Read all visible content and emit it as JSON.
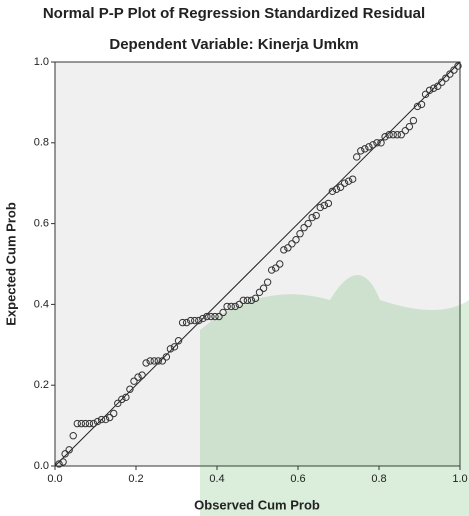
{
  "chart_data": {
    "type": "scatter",
    "title": "Normal P-P Plot of Regression Standardized Residual",
    "subtitle": "Dependent Variable: Kinerja Umkm",
    "x_label": "Observed Cum Prob",
    "y_label": "Expected Cum Prob",
    "xlim": [
      0,
      1
    ],
    "ylim": [
      0,
      1
    ],
    "xticks": [
      {
        "value": 0,
        "label": "0.0"
      },
      0.2,
      0.4,
      0.6,
      0.8,
      {
        "value": 1,
        "label": "1.0"
      }
    ],
    "yticks": [
      {
        "value": 0,
        "label": "0.0"
      },
      0.2,
      0.4,
      0.6,
      0.8,
      {
        "value": 1,
        "label": "1.0"
      }
    ],
    "color": "#333333",
    "x": [
      0.01,
      0.02,
      0.025,
      0.035,
      0.045,
      0.055,
      0.065,
      0.075,
      0.085,
      0.095,
      0.105,
      0.115,
      0.125,
      0.135,
      0.145,
      0.155,
      0.165,
      0.175,
      0.185,
      0.195,
      0.205,
      0.215,
      0.225,
      0.235,
      0.245,
      0.255,
      0.265,
      0.275,
      0.285,
      0.295,
      0.305,
      0.315,
      0.325,
      0.335,
      0.345,
      0.355,
      0.365,
      0.375,
      0.385,
      0.395,
      0.405,
      0.415,
      0.425,
      0.435,
      0.445,
      0.455,
      0.465,
      0.475,
      0.485,
      0.495,
      0.505,
      0.515,
      0.525,
      0.535,
      0.545,
      0.555,
      0.565,
      0.575,
      0.585,
      0.595,
      0.605,
      0.615,
      0.625,
      0.635,
      0.645,
      0.655,
      0.665,
      0.675,
      0.685,
      0.695,
      0.705,
      0.715,
      0.725,
      0.735,
      0.745,
      0.755,
      0.765,
      0.775,
      0.785,
      0.795,
      0.805,
      0.815,
      0.825,
      0.835,
      0.845,
      0.855,
      0.865,
      0.875,
      0.885,
      0.895,
      0.905,
      0.915,
      0.925,
      0.935,
      0.945,
      0.955,
      0.965,
      0.975,
      0.985,
      0.995
    ],
    "values": [
      0.005,
      0.01,
      0.03,
      0.04,
      0.075,
      0.105,
      0.105,
      0.105,
      0.105,
      0.105,
      0.11,
      0.115,
      0.115,
      0.12,
      0.13,
      0.155,
      0.165,
      0.17,
      0.19,
      0.21,
      0.22,
      0.225,
      0.255,
      0.26,
      0.26,
      0.26,
      0.26,
      0.27,
      0.29,
      0.295,
      0.31,
      0.355,
      0.355,
      0.36,
      0.36,
      0.36,
      0.365,
      0.37,
      0.37,
      0.37,
      0.37,
      0.38,
      0.395,
      0.395,
      0.395,
      0.4,
      0.41,
      0.41,
      0.41,
      0.415,
      0.43,
      0.44,
      0.455,
      0.485,
      0.49,
      0.5,
      0.535,
      0.54,
      0.55,
      0.56,
      0.575,
      0.59,
      0.6,
      0.615,
      0.62,
      0.64,
      0.645,
      0.65,
      0.68,
      0.685,
      0.69,
      0.7,
      0.705,
      0.71,
      0.765,
      0.78,
      0.785,
      0.79,
      0.795,
      0.8,
      0.8,
      0.815,
      0.82,
      0.82,
      0.82,
      0.82,
      0.83,
      0.84,
      0.855,
      0.89,
      0.895,
      0.92,
      0.93,
      0.935,
      0.94,
      0.95,
      0.96,
      0.97,
      0.98,
      0.99
    ]
  }
}
